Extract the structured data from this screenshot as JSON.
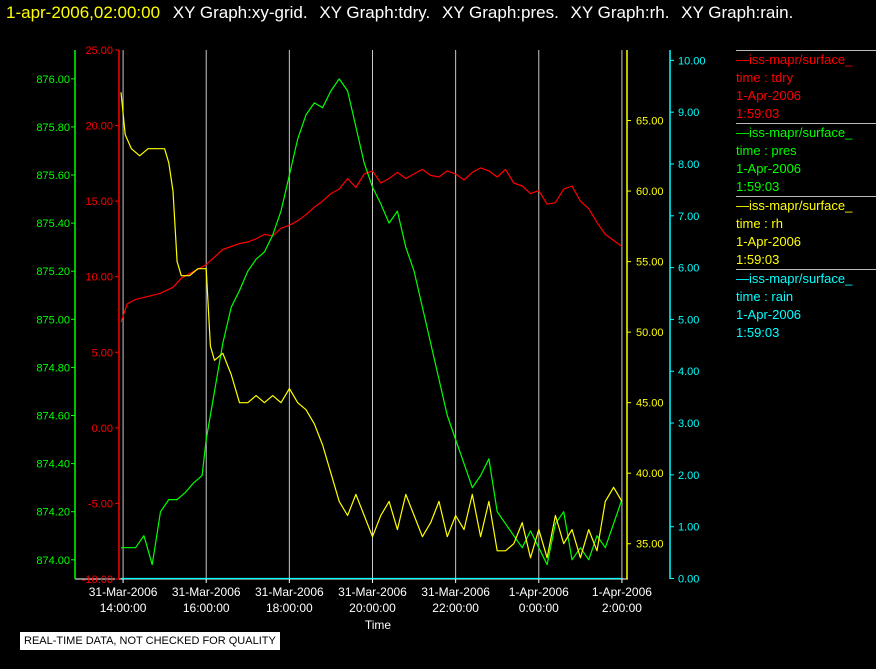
{
  "header": {
    "timestamp": "1-apr-2006,02:00:00",
    "graph_titles": [
      "XY Graph:xy-grid.",
      "XY Graph:tdry.",
      "XY Graph:pres.",
      "XY Graph:rh.",
      "XY Graph:rain."
    ]
  },
  "footer_note": "REAL-TIME DATA, NOT CHECKED FOR QUALITY",
  "colors": {
    "tdry": "#ff0000",
    "pres": "#00ff00",
    "rh": "#ffff00",
    "rain": "#00ffff",
    "grid": "#c8c8c8",
    "background": "#000000"
  },
  "legend": [
    {
      "label": "—iss-mapr/surface_",
      "var": "time : tdry",
      "date": "1-Apr-2006",
      "time": "1:59:03",
      "color": "#ff0000"
    },
    {
      "label": "—iss-mapr/surface_",
      "var": "time : pres",
      "date": "1-Apr-2006",
      "time": "1:59:03",
      "color": "#00ff00"
    },
    {
      "label": "—iss-mapr/surface_",
      "var": "time : rh",
      "date": "1-Apr-2006",
      "time": "1:59:03",
      "color": "#ffff00"
    },
    {
      "label": "—iss-mapr/surface_",
      "var": "time : rain",
      "date": "1-Apr-2006",
      "time": "1:59:03",
      "color": "#00ffff"
    }
  ],
  "chart_data": {
    "type": "line",
    "xlabel": "Time",
    "x_ticks": [
      {
        "t": 0,
        "d": "31-Mar-2006",
        "h": "14:00:00"
      },
      {
        "t": 2,
        "d": "31-Mar-2006",
        "h": "16:00:00"
      },
      {
        "t": 4,
        "d": "31-Mar-2006",
        "h": "18:00:00"
      },
      {
        "t": 6,
        "d": "31-Mar-2006",
        "h": "20:00:00"
      },
      {
        "t": 8,
        "d": "31-Mar-2006",
        "h": "22:00:00"
      },
      {
        "t": 10,
        "d": "1-Apr-2006",
        "h": "0:00:00"
      },
      {
        "t": 12,
        "d": "1-Apr-2006",
        "h": "2:00:00"
      }
    ],
    "xlim": [
      -0.05,
      12.05
    ],
    "axes": {
      "pres": {
        "color": "#00ff00",
        "ylim": [
          873.92,
          876.12
        ],
        "ticks": [
          "874.00",
          "874.20",
          "874.40",
          "874.60",
          "874.80",
          "875.00",
          "875.20",
          "875.40",
          "875.60",
          "875.80",
          "876.00"
        ]
      },
      "tdry": {
        "color": "#ff0000",
        "ylim": [
          -10,
          25
        ],
        "ticks": [
          "-10.00",
          "-5.00",
          "0.00",
          "5.00",
          "10.00",
          "15.00",
          "20.00",
          "25.00"
        ]
      },
      "rh": {
        "color": "#ffff00",
        "ylim": [
          32.5,
          70.0
        ],
        "ticks": [
          "35.00",
          "40.00",
          "45.00",
          "50.00",
          "55.00",
          "60.00",
          "65.00"
        ]
      },
      "rain": {
        "color": "#00ffff",
        "ylim": [
          -0.01,
          10.2
        ],
        "ticks": [
          "0.00",
          "1.00",
          "2.00",
          "3.00",
          "4.00",
          "5.00",
          "6.00",
          "7.00",
          "8.00",
          "9.00",
          "10.00"
        ]
      }
    },
    "series": [
      {
        "name": "tdry",
        "axis": "tdry",
        "color": "#ff0000",
        "x": [
          -0.05,
          0.1,
          0.3,
          0.6,
          0.9,
          1.2,
          1.4,
          1.6,
          1.8,
          2.0,
          2.2,
          2.4,
          2.6,
          2.8,
          3.0,
          3.2,
          3.4,
          3.6,
          3.8,
          4.0,
          4.2,
          4.4,
          4.6,
          4.8,
          5.0,
          5.2,
          5.4,
          5.6,
          5.8,
          6.0,
          6.2,
          6.4,
          6.6,
          6.8,
          7.0,
          7.2,
          7.4,
          7.6,
          7.8,
          8.0,
          8.2,
          8.4,
          8.6,
          8.8,
          9.0,
          9.2,
          9.4,
          9.6,
          9.8,
          10.0,
          10.2,
          10.4,
          10.6,
          10.8,
          11.0,
          11.2,
          11.4,
          11.6,
          11.8,
          12.0
        ],
        "y": [
          7.0,
          8.2,
          8.5,
          8.7,
          8.9,
          9.3,
          9.9,
          10.2,
          10.5,
          10.8,
          11.3,
          11.8,
          12.0,
          12.2,
          12.3,
          12.5,
          12.8,
          12.7,
          13.2,
          13.4,
          13.7,
          14.1,
          14.6,
          15.0,
          15.5,
          15.8,
          16.5,
          15.9,
          16.8,
          17.0,
          16.2,
          16.5,
          16.9,
          16.5,
          16.8,
          17.1,
          16.7,
          16.6,
          17.0,
          16.8,
          16.4,
          16.9,
          17.2,
          17.0,
          16.6,
          17.1,
          16.2,
          16.0,
          15.5,
          15.7,
          14.8,
          14.9,
          15.8,
          16.0,
          15.0,
          14.5,
          13.6,
          12.8,
          12.4,
          12.0
        ]
      },
      {
        "name": "pres",
        "axis": "pres",
        "color": "#00ff00",
        "x": [
          -0.05,
          0.1,
          0.3,
          0.5,
          0.7,
          0.9,
          1.1,
          1.3,
          1.5,
          1.7,
          1.9,
          2.0,
          2.2,
          2.4,
          2.6,
          2.8,
          3.0,
          3.2,
          3.4,
          3.6,
          3.8,
          4.0,
          4.2,
          4.4,
          4.6,
          4.8,
          5.0,
          5.2,
          5.4,
          5.6,
          5.8,
          6.0,
          6.2,
          6.4,
          6.6,
          6.8,
          7.0,
          7.2,
          7.4,
          7.6,
          7.8,
          8.0,
          8.2,
          8.4,
          8.6,
          8.8,
          9.0,
          9.2,
          9.4,
          9.6,
          9.8,
          10.0,
          10.2,
          10.4,
          10.6,
          10.8,
          11.0,
          11.2,
          11.4,
          11.6,
          11.8,
          12.0
        ],
        "y": [
          874.05,
          874.05,
          874.05,
          874.1,
          873.98,
          874.2,
          874.25,
          874.25,
          874.28,
          874.32,
          874.35,
          874.5,
          874.7,
          874.9,
          875.05,
          875.12,
          875.2,
          875.25,
          875.28,
          875.35,
          875.45,
          875.6,
          875.75,
          875.85,
          875.9,
          875.88,
          875.95,
          876.0,
          875.95,
          875.8,
          875.65,
          875.55,
          875.48,
          875.4,
          875.45,
          875.3,
          875.2,
          875.05,
          874.9,
          874.75,
          874.6,
          874.5,
          874.4,
          874.3,
          874.35,
          874.42,
          874.2,
          874.15,
          874.1,
          874.05,
          874.12,
          874.05,
          873.98,
          874.15,
          874.2,
          874.0,
          874.05,
          874.0,
          874.1,
          874.05,
          874.15,
          874.25
        ]
      },
      {
        "name": "rh",
        "axis": "rh",
        "color": "#ffff00",
        "x": [
          -0.05,
          0.05,
          0.2,
          0.4,
          0.6,
          0.8,
          1.0,
          1.1,
          1.2,
          1.3,
          1.4,
          1.6,
          1.8,
          2.0,
          2.1,
          2.2,
          2.4,
          2.6,
          2.8,
          3.0,
          3.2,
          3.4,
          3.6,
          3.8,
          4.0,
          4.2,
          4.4,
          4.6,
          4.8,
          5.0,
          5.2,
          5.4,
          5.6,
          5.8,
          6.0,
          6.2,
          6.4,
          6.6,
          6.8,
          7.0,
          7.2,
          7.4,
          7.6,
          7.8,
          8.0,
          8.2,
          8.4,
          8.6,
          8.8,
          9.0,
          9.2,
          9.4,
          9.6,
          9.8,
          10.0,
          10.2,
          10.4,
          10.6,
          10.8,
          11.0,
          11.2,
          11.4,
          11.6,
          11.8,
          12.0
        ],
        "y": [
          67.0,
          64.0,
          63.0,
          62.5,
          63.0,
          63.0,
          63.0,
          62.0,
          60.0,
          55.0,
          54.0,
          54.0,
          54.5,
          54.5,
          49.0,
          48.0,
          48.5,
          47.0,
          45.0,
          45.0,
          45.5,
          45.0,
          45.5,
          45.0,
          46.0,
          45.0,
          44.5,
          43.5,
          42.0,
          40.0,
          38.0,
          37.0,
          38.5,
          37.0,
          35.5,
          37.0,
          38.0,
          36.0,
          38.5,
          37.0,
          35.5,
          36.5,
          38.0,
          35.5,
          37.0,
          36.0,
          38.5,
          35.5,
          38.0,
          34.5,
          34.5,
          35.0,
          36.5,
          34.0,
          36.0,
          34.0,
          37.0,
          35.0,
          36.0,
          34.0,
          36.0,
          34.5,
          38.0,
          39.0,
          38.0
        ]
      },
      {
        "name": "rain",
        "axis": "rain",
        "color": "#00ffff",
        "x": [
          -0.05,
          12.0
        ],
        "y": [
          0.0,
          0.0
        ]
      }
    ]
  }
}
